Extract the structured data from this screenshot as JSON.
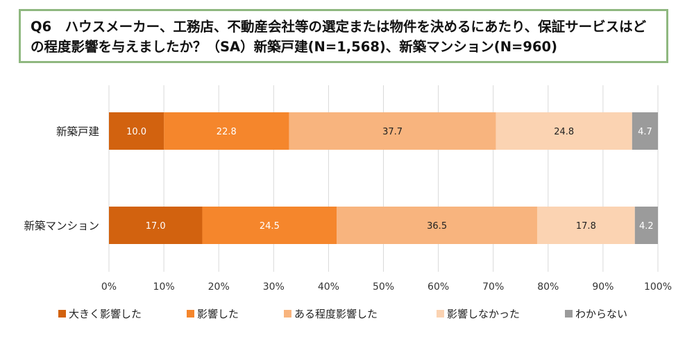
{
  "title": "Q6　ハウスメーカー、工務店、不動産会社等の選定または物件を決めるにあたり、保証サービスはどの程度影響を与えましたか？（SA）新築戸建(N=1,568)、新築マンション(N=960)",
  "colors": {
    "series": [
      "#d2620f",
      "#f5862c",
      "#f8b47e",
      "#fbd3b2",
      "#9b9b9b"
    ],
    "grid": "#d9d9d9",
    "title_border": "#8fb880"
  },
  "chart_data": {
    "type": "bar",
    "orientation": "horizontal",
    "stacked": true,
    "categories": [
      "新築戸建",
      "新築マンション"
    ],
    "series": [
      {
        "name": "大きく影響した",
        "values": [
          10.0,
          17.0
        ]
      },
      {
        "name": "影響した",
        "values": [
          22.8,
          24.5
        ]
      },
      {
        "name": "ある程度影響した",
        "values": [
          37.7,
          36.5
        ]
      },
      {
        "name": "影響しなかった",
        "values": [
          24.8,
          17.8
        ]
      },
      {
        "name": "わからない",
        "values": [
          4.7,
          4.2
        ]
      }
    ],
    "xlim": [
      0,
      100
    ],
    "x_ticks": [
      "0%",
      "10%",
      "20%",
      "30%",
      "40%",
      "50%",
      "60%",
      "70%",
      "80%",
      "90%",
      "100%"
    ],
    "grid": true,
    "legend_position": "bottom"
  }
}
